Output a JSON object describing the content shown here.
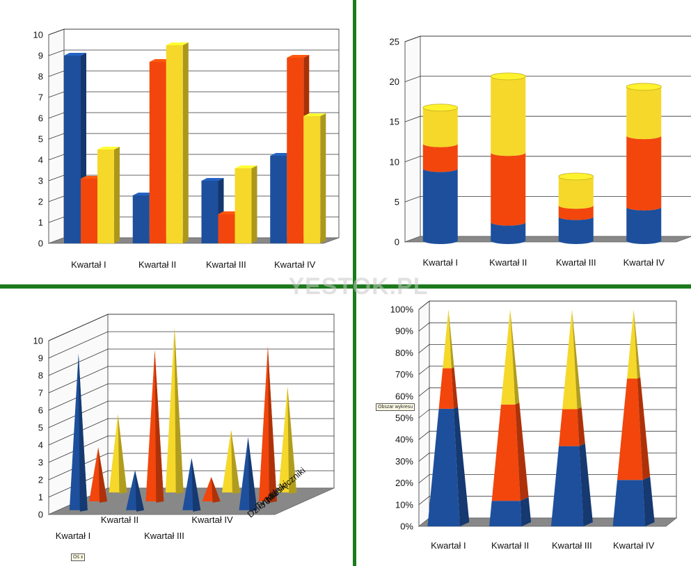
{
  "watermark": "YESTOK.PL",
  "tooltips": {
    "wall": "Obszar wykresu",
    "axis": "Oś x"
  },
  "colors": {
    "s1": "#1d4f9c",
    "s2": "#f2460c",
    "s3": "#f5d82a",
    "floor": "#888888",
    "grid": "#333333",
    "divider": "#1c7a1c"
  },
  "chart_data": [
    {
      "type": "bar",
      "variant": "3d-clustered-column",
      "categories": [
        "Kwartał I",
        "Kwartał II",
        "Kwartał III",
        "Kwartał IV"
      ],
      "series": [
        {
          "values": [
            9,
            2.3,
            3,
            4.2
          ]
        },
        {
          "values": [
            3.1,
            8.7,
            1.4,
            8.9
          ]
        },
        {
          "values": [
            4.5,
            9.5,
            3.6,
            6.1
          ]
        }
      ],
      "ylim": [
        0,
        10
      ],
      "yticks": [
        "0",
        "1",
        "2",
        "3",
        "4",
        "5",
        "6",
        "7",
        "8",
        "9",
        "10"
      ],
      "grid": true
    },
    {
      "type": "bar",
      "variant": "3d-stacked-cylinder",
      "categories": [
        "Kwartał I",
        "Kwartał II",
        "Kwartał III",
        "Kwartał IV"
      ],
      "series": [
        {
          "values": [
            9,
            2.3,
            3,
            4.2
          ]
        },
        {
          "values": [
            3.1,
            8.7,
            1.4,
            8.9
          ]
        },
        {
          "values": [
            4.5,
            9.5,
            3.6,
            6.1
          ]
        }
      ],
      "ylim": [
        0,
        25
      ],
      "yticks": [
        "0",
        "5",
        "10",
        "15",
        "20",
        "25"
      ],
      "grid": true
    },
    {
      "type": "bar",
      "variant": "3d-cone-deep",
      "categories": [
        "Kwartał I",
        "Kwartał II",
        "Kwartał III",
        "Kwartał IV"
      ],
      "series_labels": [
        "Dzienniki",
        "Tygodniki",
        "Miesięczniki"
      ],
      "series": [
        {
          "values": [
            9,
            2.3,
            3,
            4.2
          ]
        },
        {
          "values": [
            3.1,
            8.7,
            1.4,
            8.9
          ]
        },
        {
          "values": [
            4.5,
            9.5,
            3.6,
            6.1
          ]
        }
      ],
      "ylim": [
        0,
        10
      ],
      "yticks": [
        "0",
        "1",
        "2",
        "3",
        "4",
        "5",
        "6",
        "7",
        "8",
        "9",
        "10"
      ],
      "grid": true
    },
    {
      "type": "bar",
      "variant": "3d-100pct-stacked-pyramid",
      "categories": [
        "Kwartał I",
        "Kwartał II",
        "Kwartał III",
        "Kwartał IV"
      ],
      "series": [
        {
          "values": [
            54.2,
            11.8,
            37.0,
            21.4
          ]
        },
        {
          "values": [
            18.7,
            44.4,
            17.0,
            46.7
          ]
        },
        {
          "values": [
            27.1,
            43.8,
            46.0,
            31.9
          ]
        }
      ],
      "ylim": [
        0,
        100
      ],
      "yticks": [
        "0%",
        "10%",
        "20%",
        "30%",
        "40%",
        "50%",
        "60%",
        "70%",
        "80%",
        "90%",
        "100%"
      ],
      "grid": true
    }
  ]
}
